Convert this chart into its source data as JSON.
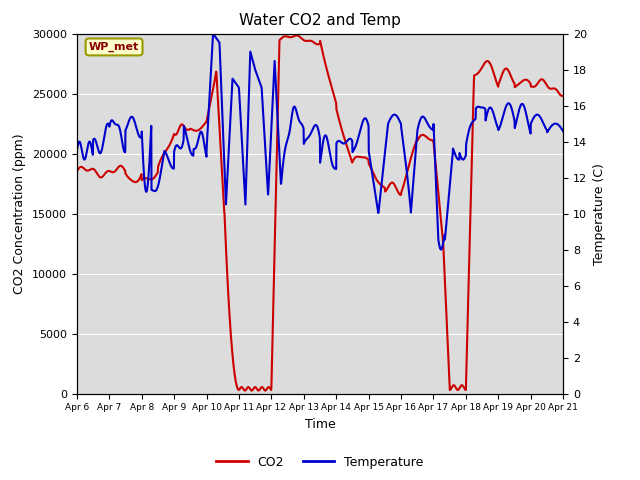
{
  "title": "Water CO2 and Temp",
  "xlabel": "Time",
  "ylabel_left": "CO2 Concentration (ppm)",
  "ylabel_right": "Temperature (C)",
  "annotation": "WP_met",
  "bg_color": "#dcdcdc",
  "co2_color": "#cc0000",
  "temp_color": "#0000cc",
  "ylim_left": [
    0,
    30000
  ],
  "ylim_right": [
    0,
    20
  ],
  "x_tick_labels": [
    "Apr 6",
    "Apr 7",
    "Apr 8",
    "Apr 9",
    "Apr 10",
    "Apr 11",
    "Apr 12",
    "Apr 13",
    "Apr 14",
    "Apr 15",
    "Apr 16",
    "Apr 17",
    "Apr 18",
    "Apr 19",
    "Apr 20",
    "Apr 21"
  ],
  "x_ticks": [
    0,
    1,
    2,
    3,
    4,
    5,
    6,
    7,
    8,
    9,
    10,
    11,
    12,
    13,
    14,
    15
  ],
  "yticks_left": [
    0,
    5000,
    10000,
    15000,
    20000,
    25000,
    30000
  ],
  "yticks_right": [
    0,
    2,
    4,
    6,
    8,
    10,
    12,
    14,
    16,
    18,
    20
  ]
}
